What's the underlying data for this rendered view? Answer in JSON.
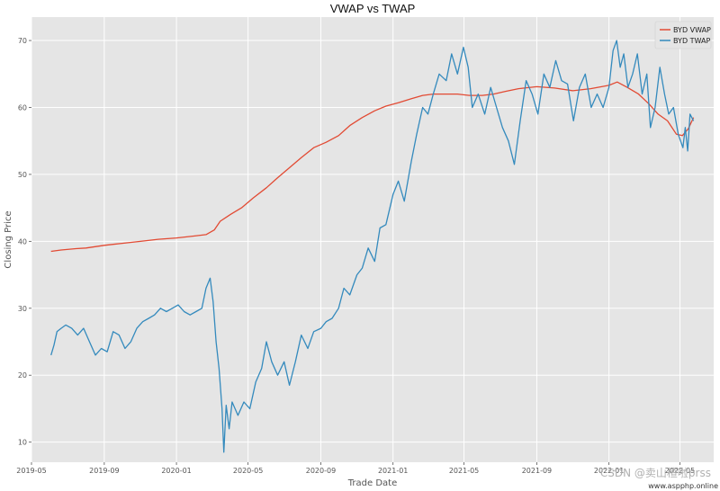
{
  "chart_data": {
    "type": "line",
    "title": "VWAP vs TWAP",
    "xlabel": "Trade Date",
    "ylabel": "Closing Price",
    "xlim": [
      "2019-05-01",
      "2022-06-27"
    ],
    "ylim": [
      7.0,
      73.5
    ],
    "grid": true,
    "legend_position": "top-right",
    "x_ticks": [
      {
        "date": "2019-05-01",
        "label": "2019-05"
      },
      {
        "date": "2019-09-01",
        "label": "2019-09"
      },
      {
        "date": "2020-01-01",
        "label": "2020-01"
      },
      {
        "date": "2020-05-01",
        "label": "2020-05"
      },
      {
        "date": "2020-09-01",
        "label": "2020-09"
      },
      {
        "date": "2021-01-01",
        "label": "2021-01"
      },
      {
        "date": "2021-05-01",
        "label": "2021-05"
      },
      {
        "date": "2021-09-01",
        "label": "2021-09"
      },
      {
        "date": "2022-01-01",
        "label": "2022-01"
      },
      {
        "date": "2022-05-01",
        "label": "2022-05"
      }
    ],
    "y_ticks": [
      {
        "value": 10,
        "label": "10"
      },
      {
        "value": 20,
        "label": "20"
      },
      {
        "value": 30,
        "label": "30"
      },
      {
        "value": 40,
        "label": "40"
      },
      {
        "value": 50,
        "label": "50"
      },
      {
        "value": 60,
        "label": "60"
      },
      {
        "value": 70,
        "label": "70"
      }
    ],
    "series": [
      {
        "name": "BYD VWAP",
        "color": "#E24A33",
        "points": [
          [
            "2019-06-03",
            38.5
          ],
          [
            "2019-06-20",
            38.7
          ],
          [
            "2019-07-15",
            38.9
          ],
          [
            "2019-08-01",
            39.0
          ],
          [
            "2019-09-01",
            39.4
          ],
          [
            "2019-10-01",
            39.7
          ],
          [
            "2019-11-01",
            40.0
          ],
          [
            "2019-12-01",
            40.3
          ],
          [
            "2020-01-01",
            40.5
          ],
          [
            "2020-02-01",
            40.8
          ],
          [
            "2020-02-20",
            41.0
          ],
          [
            "2020-03-05",
            41.7
          ],
          [
            "2020-03-15",
            43.0
          ],
          [
            "2020-04-01",
            44.0
          ],
          [
            "2020-04-20",
            45.0
          ],
          [
            "2020-05-10",
            46.5
          ],
          [
            "2020-06-01",
            48.0
          ],
          [
            "2020-06-20",
            49.5
          ],
          [
            "2020-07-10",
            51.0
          ],
          [
            "2020-07-30",
            52.5
          ],
          [
            "2020-08-20",
            54.0
          ],
          [
            "2020-09-10",
            54.8
          ],
          [
            "2020-10-01",
            55.8
          ],
          [
            "2020-10-20",
            57.3
          ],
          [
            "2020-11-10",
            58.5
          ],
          [
            "2020-12-01",
            59.5
          ],
          [
            "2020-12-20",
            60.2
          ],
          [
            "2021-01-10",
            60.7
          ],
          [
            "2021-02-01",
            61.3
          ],
          [
            "2021-02-20",
            61.8
          ],
          [
            "2021-03-10",
            62.0
          ],
          [
            "2021-04-01",
            62.0
          ],
          [
            "2021-04-20",
            62.0
          ],
          [
            "2021-05-10",
            61.8
          ],
          [
            "2021-06-01",
            61.8
          ],
          [
            "2021-06-20",
            62.0
          ],
          [
            "2021-07-10",
            62.4
          ],
          [
            "2021-08-01",
            62.8
          ],
          [
            "2021-09-01",
            63.1
          ],
          [
            "2021-10-01",
            62.9
          ],
          [
            "2021-11-01",
            62.5
          ],
          [
            "2021-12-01",
            62.8
          ],
          [
            "2022-01-01",
            63.3
          ],
          [
            "2022-01-15",
            63.8
          ],
          [
            "2022-02-01",
            63.0
          ],
          [
            "2022-02-20",
            62.0
          ],
          [
            "2022-03-10",
            60.5
          ],
          [
            "2022-03-25",
            59.0
          ],
          [
            "2022-04-10",
            58.0
          ],
          [
            "2022-04-25",
            56.0
          ],
          [
            "2022-05-05",
            55.8
          ],
          [
            "2022-05-15",
            56.8
          ],
          [
            "2022-05-24",
            58.5
          ]
        ]
      },
      {
        "name": "BYD TWAP",
        "color": "#348ABD",
        "points": [
          [
            "2019-06-03",
            23.0
          ],
          [
            "2019-06-08",
            24.5
          ],
          [
            "2019-06-13",
            26.5
          ],
          [
            "2019-06-20",
            27.0
          ],
          [
            "2019-06-28",
            27.5
          ],
          [
            "2019-07-08",
            27.0
          ],
          [
            "2019-07-18",
            26.0
          ],
          [
            "2019-07-28",
            27.0
          ],
          [
            "2019-08-07",
            25.0
          ],
          [
            "2019-08-17",
            23.0
          ],
          [
            "2019-08-27",
            24.0
          ],
          [
            "2019-09-06",
            23.5
          ],
          [
            "2019-09-16",
            26.5
          ],
          [
            "2019-09-26",
            26.0
          ],
          [
            "2019-10-06",
            24.0
          ],
          [
            "2019-10-16",
            25.0
          ],
          [
            "2019-10-26",
            27.0
          ],
          [
            "2019-11-05",
            28.0
          ],
          [
            "2019-11-15",
            28.5
          ],
          [
            "2019-11-25",
            29.0
          ],
          [
            "2019-12-05",
            30.0
          ],
          [
            "2019-12-15",
            29.5
          ],
          [
            "2019-12-25",
            30.0
          ],
          [
            "2020-01-04",
            30.5
          ],
          [
            "2020-01-14",
            29.5
          ],
          [
            "2020-01-24",
            29.0
          ],
          [
            "2020-02-03",
            29.5
          ],
          [
            "2020-02-13",
            30.0
          ],
          [
            "2020-02-20",
            33.0
          ],
          [
            "2020-02-27",
            34.5
          ],
          [
            "2020-03-03",
            31.0
          ],
          [
            "2020-03-08",
            25.0
          ],
          [
            "2020-03-13",
            21.0
          ],
          [
            "2020-03-18",
            15.0
          ],
          [
            "2020-03-21",
            8.5
          ],
          [
            "2020-03-25",
            15.5
          ],
          [
            "2020-03-30",
            12.0
          ],
          [
            "2020-04-04",
            16.0
          ],
          [
            "2020-04-14",
            14.0
          ],
          [
            "2020-04-24",
            16.0
          ],
          [
            "2020-05-04",
            15.0
          ],
          [
            "2020-05-14",
            19.0
          ],
          [
            "2020-05-24",
            21.0
          ],
          [
            "2020-06-01",
            25.0
          ],
          [
            "2020-06-10",
            22.0
          ],
          [
            "2020-06-20",
            20.0
          ],
          [
            "2020-07-01",
            22.0
          ],
          [
            "2020-07-10",
            18.5
          ],
          [
            "2020-07-20",
            22.0
          ],
          [
            "2020-07-30",
            26.0
          ],
          [
            "2020-08-10",
            24.0
          ],
          [
            "2020-08-20",
            26.5
          ],
          [
            "2020-09-01",
            27.0
          ],
          [
            "2020-09-10",
            28.0
          ],
          [
            "2020-09-20",
            28.5
          ],
          [
            "2020-10-01",
            30.0
          ],
          [
            "2020-10-10",
            33.0
          ],
          [
            "2020-10-20",
            32.0
          ],
          [
            "2020-11-01",
            35.0
          ],
          [
            "2020-11-10",
            36.0
          ],
          [
            "2020-11-20",
            39.0
          ],
          [
            "2020-12-01",
            37.0
          ],
          [
            "2020-12-10",
            42.0
          ],
          [
            "2020-12-20",
            42.5
          ],
          [
            "2021-01-01",
            47.0
          ],
          [
            "2021-01-10",
            49.0
          ],
          [
            "2021-01-20",
            46.0
          ],
          [
            "2021-02-01",
            52.0
          ],
          [
            "2021-02-10",
            56.0
          ],
          [
            "2021-02-20",
            60.0
          ],
          [
            "2021-03-01",
            59.0
          ],
          [
            "2021-03-10",
            62.0
          ],
          [
            "2021-03-20",
            65.0
          ],
          [
            "2021-04-01",
            64.0
          ],
          [
            "2021-04-10",
            68.0
          ],
          [
            "2021-04-20",
            65.0
          ],
          [
            "2021-04-30",
            69.0
          ],
          [
            "2021-05-08",
            66.0
          ],
          [
            "2021-05-15",
            60.0
          ],
          [
            "2021-05-25",
            62.0
          ],
          [
            "2021-06-05",
            59.0
          ],
          [
            "2021-06-15",
            63.0
          ],
          [
            "2021-06-25",
            60.0
          ],
          [
            "2021-07-05",
            57.0
          ],
          [
            "2021-07-15",
            55.0
          ],
          [
            "2021-07-25",
            51.5
          ],
          [
            "2021-08-04",
            58.0
          ],
          [
            "2021-08-14",
            64.0
          ],
          [
            "2021-08-24",
            62.0
          ],
          [
            "2021-09-03",
            59.0
          ],
          [
            "2021-09-13",
            65.0
          ],
          [
            "2021-09-23",
            63.0
          ],
          [
            "2021-10-03",
            67.0
          ],
          [
            "2021-10-13",
            64.0
          ],
          [
            "2021-10-23",
            63.5
          ],
          [
            "2021-11-02",
            58.0
          ],
          [
            "2021-11-12",
            63.0
          ],
          [
            "2021-11-22",
            65.0
          ],
          [
            "2021-12-02",
            60.0
          ],
          [
            "2021-12-12",
            62.0
          ],
          [
            "2021-12-22",
            60.0
          ],
          [
            "2022-01-01",
            63.0
          ],
          [
            "2022-01-08",
            68.5
          ],
          [
            "2022-01-14",
            70.0
          ],
          [
            "2022-01-20",
            66.0
          ],
          [
            "2022-01-26",
            68.0
          ],
          [
            "2022-02-02",
            63.0
          ],
          [
            "2022-02-10",
            65.0
          ],
          [
            "2022-02-18",
            68.0
          ],
          [
            "2022-02-26",
            62.0
          ],
          [
            "2022-03-06",
            65.0
          ],
          [
            "2022-03-12",
            57.0
          ],
          [
            "2022-03-20",
            60.0
          ],
          [
            "2022-03-28",
            66.0
          ],
          [
            "2022-04-05",
            62.0
          ],
          [
            "2022-04-12",
            59.0
          ],
          [
            "2022-04-20",
            60.0
          ],
          [
            "2022-04-28",
            56.0
          ],
          [
            "2022-05-06",
            54.0
          ],
          [
            "2022-05-10",
            57.0
          ],
          [
            "2022-05-14",
            53.5
          ],
          [
            "2022-05-18",
            59.0
          ],
          [
            "2022-05-24",
            58.0
          ]
        ]
      }
    ]
  },
  "watermark": {
    "main": "CSDN @卖山楂啦prss",
    "small": "www.aspphp.online"
  }
}
